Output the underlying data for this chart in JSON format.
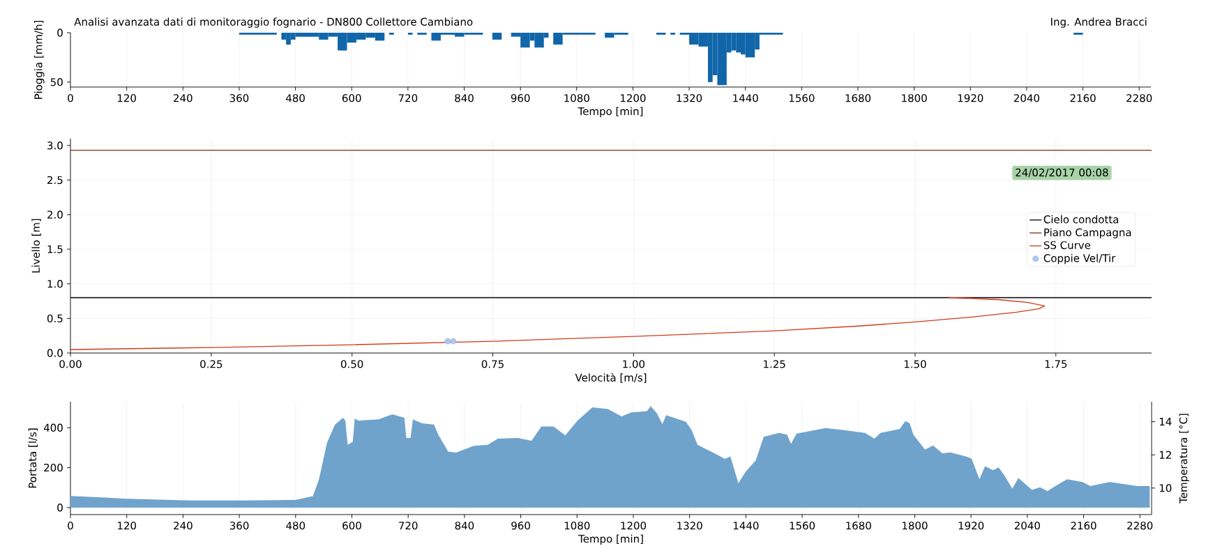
{
  "chart_data": [
    {
      "type": "histogram",
      "title": "Analisi avanzata dati di monitoraggio fognario - DN800 Collettore Cambiano",
      "annotations": [
        "Ing. Andrea Bracci"
      ],
      "xlabel": "Tempo [min]",
      "ylabel": "Pioggia [mm/h]",
      "color": "#1166aa",
      "grid": "x",
      "bins": [
        360,
        440,
        450,
        460,
        470,
        480,
        530,
        550,
        570,
        590,
        610,
        630,
        650,
        670,
        680,
        690,
        720,
        730,
        740,
        760,
        770,
        790,
        820,
        840,
        850,
        880,
        900,
        920,
        940,
        960,
        980,
        990,
        1010,
        1020,
        1030,
        1050,
        1120,
        1140,
        1160,
        1190,
        1250,
        1270,
        1280,
        1290,
        1300,
        1320,
        1340,
        1360,
        1370,
        1380,
        1400,
        1410,
        1420,
        1430,
        1440,
        1460,
        1470,
        1520,
        2140,
        2160
      ],
      "values": [
        2,
        0,
        7,
        12,
        7,
        4,
        7,
        4,
        18,
        10,
        7,
        5,
        8,
        0,
        2,
        0,
        2,
        0,
        2,
        0,
        8,
        2,
        4,
        2,
        2,
        0,
        7,
        0,
        4,
        15,
        8,
        15,
        5,
        0,
        12,
        2,
        0,
        5,
        2,
        0,
        2,
        0,
        2,
        0,
        2,
        12,
        14,
        50,
        43,
        53,
        20,
        18,
        20,
        22,
        25,
        17,
        2,
        0,
        2
      ],
      "xlim": [
        0,
        2305
      ],
      "xticks": [
        0,
        120,
        240,
        360,
        480,
        600,
        720,
        840,
        960,
        1080,
        1200,
        1320,
        1440,
        1560,
        1680,
        1800,
        1920,
        2040,
        2160,
        2280
      ],
      "ylim": [
        55,
        0
      ],
      "yticks": [
        0,
        50
      ]
    },
    {
      "type": "line",
      "xlabel": "Velocità [m/s]",
      "ylabel": "Livello [m]",
      "grid": true,
      "legend": "right",
      "annotations": [
        "24/02/2017 00:08"
      ],
      "series": [
        {
          "name": "Cielo condotta",
          "color": "#000000",
          "x": [
            0,
            1.92
          ],
          "values": [
            0.8,
            0.8
          ]
        },
        {
          "name": "Piano Campagna",
          "color": "#7a2a10",
          "x": [
            0,
            1.92
          ],
          "values": [
            2.93,
            2.93
          ]
        },
        {
          "name": "SS Curve",
          "color": "#d03a1a",
          "x": [
            0,
            0.25,
            0.5,
            0.75,
            1.0,
            1.25,
            1.4,
            1.5,
            1.6,
            1.68,
            1.72,
            1.73,
            1.7,
            1.65,
            1.6,
            1.56
          ],
          "values": [
            0.05,
            0.08,
            0.12,
            0.17,
            0.24,
            0.32,
            0.39,
            0.45,
            0.52,
            0.59,
            0.64,
            0.68,
            0.73,
            0.77,
            0.79,
            0.8
          ]
        },
        {
          "name": "Coppie Vel/Tir",
          "type": "scatter",
          "color": "#aec7e8",
          "x": [
            0.67,
            0.68
          ],
          "values": [
            0.17,
            0.17
          ]
        }
      ],
      "xlim": [
        0,
        1.92
      ],
      "xticks": [
        {
          "value": 0,
          "label": "0.00"
        },
        {
          "value": 0.25,
          "label": "0.25"
        },
        {
          "value": 0.5,
          "label": "0.50"
        },
        {
          "value": 0.75,
          "label": "0.75"
        },
        {
          "value": 1,
          "label": "1.00"
        },
        {
          "value": 1.25,
          "label": "1.25"
        },
        {
          "value": 1.5,
          "label": "1.50"
        },
        {
          "value": 1.75,
          "label": "1.75"
        }
      ],
      "ylim": [
        0,
        3.1
      ],
      "yticks": [
        {
          "value": 0,
          "label": "0.0"
        },
        {
          "value": 0.5,
          "label": "0.5"
        },
        {
          "value": 1,
          "label": "1.0"
        },
        {
          "value": 1.5,
          "label": "1.5"
        },
        {
          "value": 2,
          "label": "2.0"
        },
        {
          "value": 2.5,
          "label": "2.5"
        },
        {
          "value": 3,
          "label": "3.0"
        }
      ]
    },
    {
      "type": "area",
      "xlabel": "Tempo [min]",
      "ylabel": "Portata [l/s]",
      "y2label": "Temperatura [°C]",
      "color": "#6fa3cc",
      "grid": "x",
      "x": [
        0,
        72,
        119,
        258,
        360,
        479,
        517,
        530,
        547,
        564,
        581,
        586,
        591,
        602,
        606,
        614,
        657,
        686,
        712,
        716,
        725,
        730,
        750,
        775,
        784,
        805,
        822,
        860,
        890,
        911,
        953,
        983,
        1004,
        1030,
        1055,
        1081,
        1113,
        1146,
        1175,
        1196,
        1229,
        1237,
        1250,
        1262,
        1270,
        1312,
        1324,
        1337,
        1349,
        1378,
        1395,
        1407,
        1424,
        1440,
        1461,
        1478,
        1511,
        1528,
        1536,
        1548,
        1610,
        1644,
        1694,
        1714,
        1727,
        1768,
        1780,
        1789,
        1797,
        1822,
        1839,
        1859,
        1876,
        1909,
        1921,
        1938,
        1950,
        1967,
        1979,
        1992,
        2008,
        2021,
        2050,
        2067,
        2083,
        2100,
        2125,
        2158,
        2174,
        2216,
        2274,
        2301
      ],
      "values": [
        58,
        50,
        44,
        36,
        36,
        38,
        57,
        143,
        325,
        416,
        450,
        436,
        315,
        329,
        446,
        436,
        442,
        467,
        450,
        349,
        349,
        442,
        422,
        416,
        366,
        281,
        275,
        309,
        315,
        345,
        349,
        335,
        406,
        406,
        362,
        436,
        502,
        493,
        457,
        477,
        483,
        508,
        473,
        418,
        463,
        430,
        390,
        315,
        300,
        266,
        244,
        256,
        122,
        181,
        236,
        355,
        374,
        365,
        319,
        370,
        398,
        390,
        374,
        345,
        374,
        394,
        433,
        424,
        365,
        290,
        311,
        272,
        276,
        256,
        246,
        142,
        207,
        187,
        201,
        158,
        95,
        148,
        89,
        102,
        83,
        108,
        142,
        128,
        108,
        128,
        108,
        108
      ],
      "xlim": [
        0,
        2305
      ],
      "xticks": [
        0,
        120,
        240,
        360,
        480,
        600,
        720,
        840,
        960,
        1080,
        1200,
        1320,
        1440,
        1560,
        1680,
        1800,
        1920,
        2040,
        2160,
        2280
      ],
      "ylim": [
        -35,
        530
      ],
      "yticks": [
        0,
        200,
        400
      ],
      "y2lim": [
        8.4,
        15.2
      ],
      "y2ticks": [
        10,
        12,
        14
      ]
    }
  ]
}
